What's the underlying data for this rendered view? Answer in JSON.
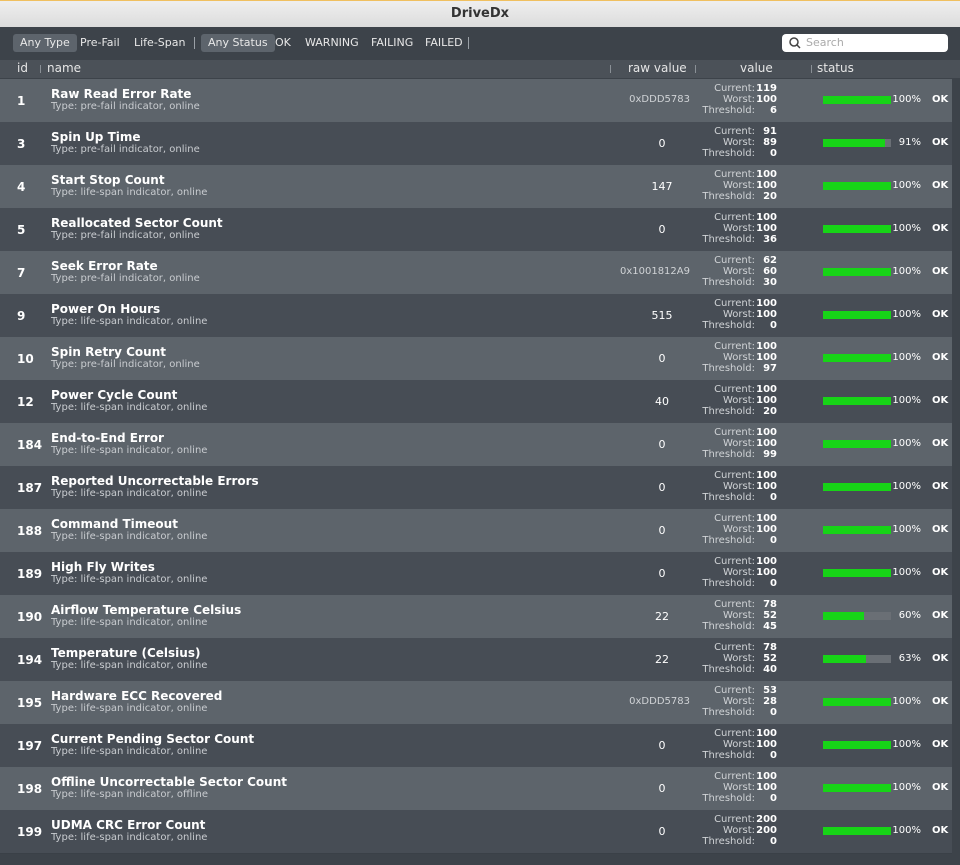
{
  "window": {
    "title": "DriveDx"
  },
  "toolbar": {
    "type_filters": [
      "Any Type",
      "Pre-Fail",
      "Life-Span"
    ],
    "status_filters": [
      "Any Status",
      "OK",
      "WARNING",
      "FAILING",
      "FAILED"
    ],
    "search_placeholder": "Search"
  },
  "table": {
    "columns": [
      "id",
      "name",
      "raw value",
      "value",
      "status"
    ],
    "value_labels": [
      "Current:",
      "Worst:",
      "Threshold:"
    ],
    "rows": [
      {
        "id": 1,
        "name": "Raw Read Error Rate",
        "type": "Type: pre-fail indicator, online",
        "raw": "0xDDD5783",
        "current": 119,
        "worst": 100,
        "threshold": 6,
        "health": {
          "value": 100,
          "label": "100%"
        },
        "status": "OK"
      },
      {
        "id": 3,
        "name": "Spin Up Time",
        "type": "Type: pre-fail indicator, online",
        "raw": "0",
        "current": 91,
        "worst": 89,
        "threshold": 0,
        "health": {
          "value": 91,
          "label": "91%"
        },
        "status": "OK"
      },
      {
        "id": 4,
        "name": "Start Stop Count",
        "type": "Type: life-span indicator, online",
        "raw": "147",
        "current": 100,
        "worst": 100,
        "threshold": 20,
        "health": {
          "value": 100,
          "label": "100%"
        },
        "status": "OK"
      },
      {
        "id": 5,
        "name": "Reallocated Sector Count",
        "type": "Type: pre-fail indicator, online",
        "raw": "0",
        "current": 100,
        "worst": 100,
        "threshold": 36,
        "health": {
          "value": 100,
          "label": "100%"
        },
        "status": "OK"
      },
      {
        "id": 7,
        "name": "Seek Error Rate",
        "type": "Type: pre-fail indicator, online",
        "raw": "0x1001812A9",
        "current": 62,
        "worst": 60,
        "threshold": 30,
        "health": {
          "value": 100,
          "label": "100%"
        },
        "status": "OK"
      },
      {
        "id": 9,
        "name": "Power On Hours",
        "type": "Type: life-span indicator, online",
        "raw": "515",
        "current": 100,
        "worst": 100,
        "threshold": 0,
        "health": {
          "value": 100,
          "label": "100%"
        },
        "status": "OK"
      },
      {
        "id": 10,
        "name": "Spin Retry Count",
        "type": "Type: pre-fail indicator, online",
        "raw": "0",
        "current": 100,
        "worst": 100,
        "threshold": 97,
        "health": {
          "value": 100,
          "label": "100%"
        },
        "status": "OK"
      },
      {
        "id": 12,
        "name": "Power Cycle Count",
        "type": "Type: life-span indicator, online",
        "raw": "40",
        "current": 100,
        "worst": 100,
        "threshold": 20,
        "health": {
          "value": 100,
          "label": "100%"
        },
        "status": "OK"
      },
      {
        "id": 184,
        "name": "End-to-End Error",
        "type": "Type: life-span indicator, online",
        "raw": "0",
        "current": 100,
        "worst": 100,
        "threshold": 99,
        "health": {
          "value": 100,
          "label": "100%"
        },
        "status": "OK"
      },
      {
        "id": 187,
        "name": "Reported Uncorrectable Errors",
        "type": "Type: life-span indicator, online",
        "raw": "0",
        "current": 100,
        "worst": 100,
        "threshold": 0,
        "health": {
          "value": 100,
          "label": "100%"
        },
        "status": "OK"
      },
      {
        "id": 188,
        "name": "Command Timeout",
        "type": "Type: life-span indicator, online",
        "raw": "0",
        "current": 100,
        "worst": 100,
        "threshold": 0,
        "health": {
          "value": 100,
          "label": "100%"
        },
        "status": "OK"
      },
      {
        "id": 189,
        "name": "High Fly Writes",
        "type": "Type: life-span indicator, online",
        "raw": "0",
        "current": 100,
        "worst": 100,
        "threshold": 0,
        "health": {
          "value": 100,
          "label": "100%"
        },
        "status": "OK"
      },
      {
        "id": 190,
        "name": "Airflow Temperature Celsius",
        "type": "Type: life-span indicator, online",
        "raw": "22",
        "current": 78,
        "worst": 52,
        "threshold": 45,
        "health": {
          "value": 60,
          "label": "60%"
        },
        "status": "OK"
      },
      {
        "id": 194,
        "name": "Temperature (Celsius)",
        "type": "Type: life-span indicator, online",
        "raw": "22",
        "current": 78,
        "worst": 52,
        "threshold": 40,
        "health": {
          "value": 63,
          "label": "63%"
        },
        "status": "OK"
      },
      {
        "id": 195,
        "name": "Hardware ECC Recovered",
        "type": "Type: life-span indicator, online",
        "raw": "0xDDD5783",
        "current": 53,
        "worst": 28,
        "threshold": 0,
        "health": {
          "value": 100,
          "label": "100%"
        },
        "status": "OK"
      },
      {
        "id": 197,
        "name": "Current Pending Sector Count",
        "type": "Type: life-span indicator, online",
        "raw": "0",
        "current": 100,
        "worst": 100,
        "threshold": 0,
        "health": {
          "value": 100,
          "label": "100%"
        },
        "status": "OK"
      },
      {
        "id": 198,
        "name": "Offline Uncorrectable Sector Count",
        "type": "Type: life-span indicator, offline",
        "raw": "0",
        "current": 100,
        "worst": 100,
        "threshold": 0,
        "health": {
          "value": 100,
          "label": "100%"
        },
        "status": "OK"
      },
      {
        "id": 199,
        "name": "UDMA CRC Error Count",
        "type": "Type: life-span indicator, online",
        "raw": "0",
        "current": 200,
        "worst": 200,
        "threshold": 0,
        "health": {
          "value": 100,
          "label": "100%"
        },
        "status": "OK"
      }
    ]
  }
}
